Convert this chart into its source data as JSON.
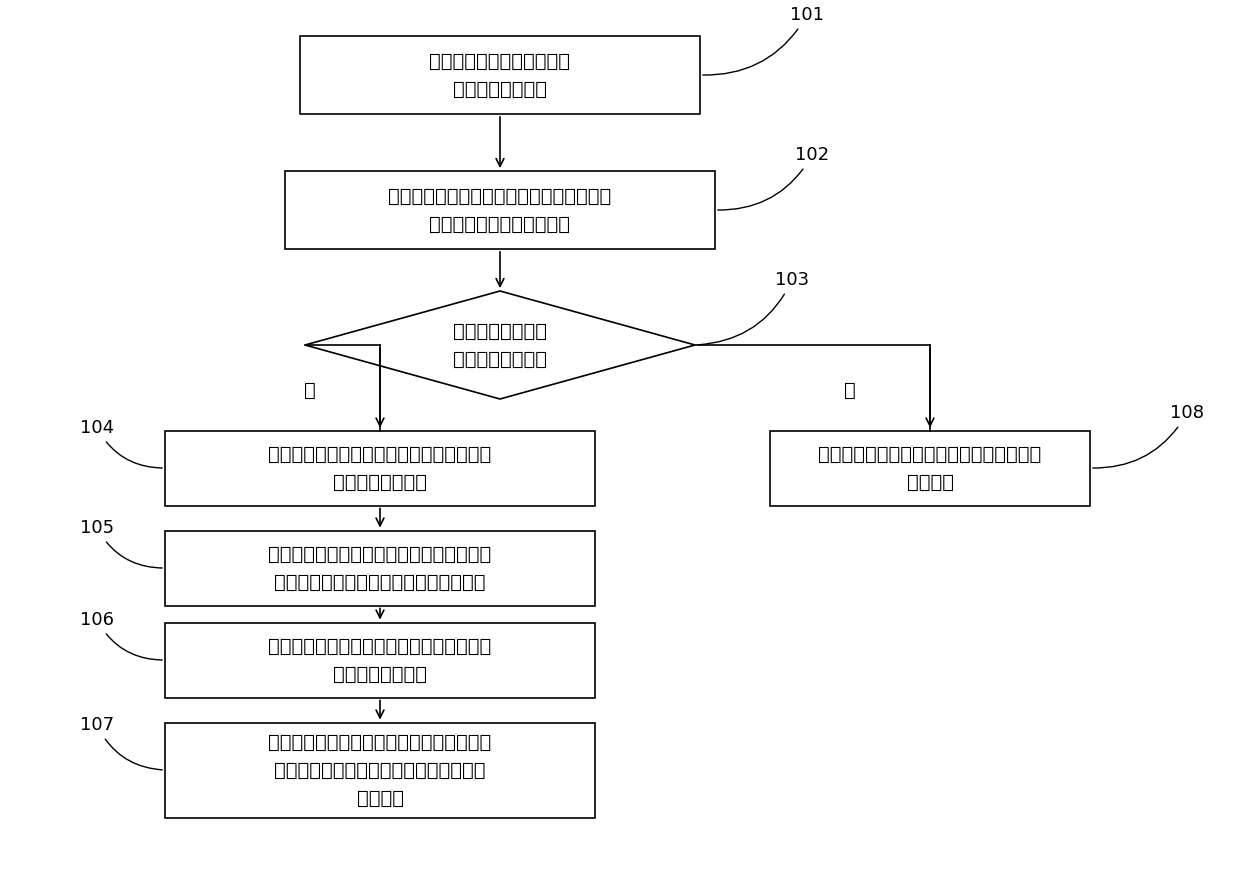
{
  "bg_color": "#ffffff",
  "box_edge_color": "#000000",
  "text_color": "#000000",
  "arrow_color": "#000000",
  "nodes": {
    "101": {
      "text": "获取加工材料的初始化参数\n以及在线加工数据"
    },
    "102": {
      "text": "在所述初始化参数的加工条件下，根据所述\n在线加工数据确定偏离程度"
    },
    "103": {
      "text": "所述偏离程度大于\n预设偏离程度阈值"
    },
    "104": {
      "text": "将所述初始化参数以及所述在线加工数据由\n工控机发送至云端"
    },
    "105": {
      "text": "利用云计算的粗粒度并行化遗传算法，根据\n所述在线加工数据确定材料力学性能参数"
    },
    "106": {
      "text": "根据所述初始化参数以及所述材料力学性能\n参数确定弯曲行程"
    },
    "107": {
      "text": "将所述弯曲行程由所述云端发送至所述工控\n机，并根据所述弯曲行程对所述加工材料\n进行加工"
    },
    "108": {
      "text": "利用所述名义力学性能参数对所述加工材料\n继续加工"
    }
  },
  "yes_label": "是",
  "no_label": "否",
  "lw": 1.2,
  "fs_main": 14,
  "fs_ref": 13
}
